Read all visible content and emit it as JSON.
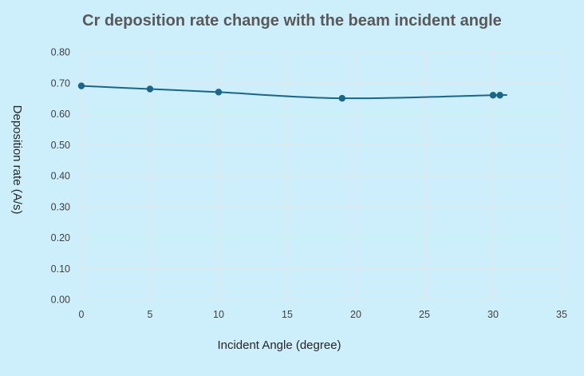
{
  "chart_data": {
    "type": "scatter",
    "title": "Cr deposition rate change with the beam incident angle",
    "xlabel": "Incident Angle (degree)",
    "ylabel": "Deposition rate (A/s)",
    "xlim": [
      0,
      35
    ],
    "ylim": [
      0,
      0.8
    ],
    "x_ticks": [
      "0",
      "5",
      "10",
      "15",
      "20",
      "25",
      "30",
      "35"
    ],
    "y_ticks": [
      "0.00",
      "0.10",
      "0.20",
      "0.30",
      "0.40",
      "0.50",
      "0.60",
      "0.70",
      "0.80"
    ],
    "grid": true,
    "legend": "none",
    "series": [
      {
        "color": "#1a6688",
        "line": "smooth",
        "x": [
          0,
          5,
          10,
          19,
          30,
          30.5
        ],
        "y": [
          0.69,
          0.68,
          0.67,
          0.65,
          0.66,
          0.66
        ]
      }
    ]
  },
  "colors": {
    "background": "#cdeefb",
    "plot_background": "#cdeefb",
    "grid": "#e6e6e6",
    "series": "#1a6688"
  }
}
